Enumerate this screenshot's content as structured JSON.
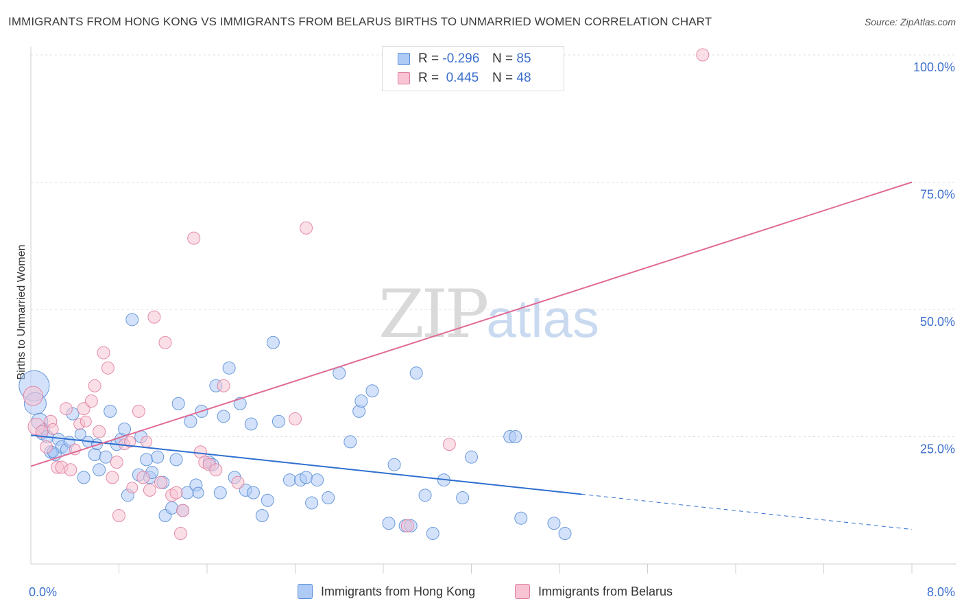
{
  "header": {
    "title": "IMMIGRANTS FROM HONG KONG VS IMMIGRANTS FROM BELARUS BIRTHS TO UNMARRIED WOMEN CORRELATION CHART",
    "source": "Source: ZipAtlas.com"
  },
  "watermark": {
    "zip": "ZIP",
    "atlas": "atlas"
  },
  "legend": {
    "rows": [
      {
        "r_label": "R =",
        "r_value": "-0.296",
        "n_label": "N =",
        "n_value": "85",
        "color": "#aecbf5",
        "border": "#5b8fd6"
      },
      {
        "r_label": "R =",
        "r_value": "0.445",
        "n_label": "N =",
        "n_value": "48",
        "color": "#f8c4d4",
        "border": "#e07ea0"
      }
    ]
  },
  "bottom_legend": {
    "hong_kong": "Immigrants from Hong Kong",
    "belarus": "Immigrants from Belarus"
  },
  "chart_data": {
    "type": "scatter",
    "title": "IMMIGRANTS FROM HONG KONG VS IMMIGRANTS FROM BELARUS BIRTHS TO UNMARRIED WOMEN CORRELATION CHART",
    "xlabel": "",
    "ylabel": "Births to Unmarried Women",
    "xlim": [
      0,
      8
    ],
    "ylim": [
      0,
      100
    ],
    "x_tick_labels": [
      "0.0%",
      "8.0%"
    ],
    "y_tick_labels": [
      "25.0%",
      "50.0%",
      "75.0%",
      "100.0%"
    ],
    "y_ticks": [
      25,
      50,
      75,
      100
    ],
    "grid": true,
    "legend_position": "top-center",
    "series": [
      {
        "name": "Immigrants from Hong Kong",
        "color": "#5b8fd6",
        "fill": "#aecbf5",
        "r": -0.296,
        "n": 85,
        "trend": {
          "x0": 0,
          "y0": 25.3,
          "x1": 5,
          "y1": 13.7,
          "dash_x1": 8,
          "dash_y1": 6.8
        },
        "points": [
          [
            0.03,
            35.0,
            22
          ],
          [
            0.04,
            31.5,
            16
          ],
          [
            0.08,
            28.0,
            12
          ],
          [
            0.1,
            25.5,
            8
          ],
          [
            0.12,
            26.5,
            8
          ],
          [
            0.15,
            25.0,
            9
          ],
          [
            0.18,
            22.0,
            9
          ],
          [
            0.22,
            21.5,
            9
          ],
          [
            0.25,
            24.5,
            9
          ],
          [
            0.28,
            23.0,
            9
          ],
          [
            0.32,
            22.5,
            8
          ],
          [
            0.35,
            24.0,
            8
          ],
          [
            0.38,
            29.5,
            9
          ],
          [
            0.45,
            25.5,
            8
          ],
          [
            0.48,
            17.0,
            9
          ],
          [
            0.52,
            24.0,
            8
          ],
          [
            0.58,
            21.5,
            9
          ],
          [
            0.62,
            18.5,
            9
          ],
          [
            0.68,
            21.0,
            9
          ],
          [
            0.72,
            30.0,
            9
          ],
          [
            0.78,
            23.5,
            9
          ],
          [
            0.82,
            24.5,
            9
          ],
          [
            0.85,
            26.5,
            9
          ],
          [
            0.88,
            13.5,
            9
          ],
          [
            0.92,
            48.0,
            9
          ],
          [
            0.98,
            17.5,
            9
          ],
          [
            1.0,
            25.0,
            9
          ],
          [
            1.05,
            20.5,
            9
          ],
          [
            1.08,
            17.0,
            9
          ],
          [
            1.1,
            18.0,
            9
          ],
          [
            1.15,
            21.0,
            9
          ],
          [
            1.2,
            16.0,
            9
          ],
          [
            1.22,
            9.5,
            9
          ],
          [
            1.28,
            11.0,
            9
          ],
          [
            1.32,
            20.5,
            9
          ],
          [
            1.34,
            31.5,
            9
          ],
          [
            1.38,
            10.5,
            9
          ],
          [
            1.42,
            14.0,
            9
          ],
          [
            1.45,
            28.0,
            9
          ],
          [
            1.5,
            15.5,
            9
          ],
          [
            1.55,
            30.0,
            9
          ],
          [
            1.62,
            20.0,
            9
          ],
          [
            1.65,
            19.5,
            9
          ],
          [
            1.68,
            35.0,
            9
          ],
          [
            1.72,
            14.0,
            9
          ],
          [
            1.75,
            29.0,
            9
          ],
          [
            1.8,
            38.5,
            9
          ],
          [
            1.85,
            17.0,
            9
          ],
          [
            1.9,
            31.5,
            9
          ],
          [
            1.95,
            14.5,
            9
          ],
          [
            2.0,
            27.5,
            9
          ],
          [
            2.02,
            14.0,
            9
          ],
          [
            2.1,
            9.5,
            9
          ],
          [
            2.15,
            12.5,
            9
          ],
          [
            2.2,
            43.5,
            9
          ],
          [
            2.25,
            28.0,
            9
          ],
          [
            2.35,
            16.5,
            9
          ],
          [
            2.45,
            16.5,
            9
          ],
          [
            2.5,
            17.0,
            9
          ],
          [
            2.55,
            12.0,
            9
          ],
          [
            2.6,
            16.5,
            9
          ],
          [
            2.7,
            13.0,
            9
          ],
          [
            2.8,
            37.5,
            9
          ],
          [
            2.9,
            24.0,
            9
          ],
          [
            2.98,
            30.0,
            9
          ],
          [
            3.0,
            32.0,
            9
          ],
          [
            3.1,
            34.0,
            9
          ],
          [
            3.25,
            8.0,
            9
          ],
          [
            3.3,
            19.5,
            9
          ],
          [
            3.4,
            7.5,
            9
          ],
          [
            3.45,
            7.5,
            9
          ],
          [
            3.5,
            37.5,
            9
          ],
          [
            3.58,
            13.5,
            9
          ],
          [
            3.65,
            6.0,
            9
          ],
          [
            3.75,
            16.5,
            9
          ],
          [
            3.92,
            13.0,
            9
          ],
          [
            4.0,
            21.0,
            9
          ],
          [
            4.35,
            25.0,
            9
          ],
          [
            4.4,
            25.0,
            9
          ],
          [
            4.45,
            9.0,
            9
          ],
          [
            4.75,
            8.0,
            9
          ],
          [
            4.85,
            6.0,
            9
          ],
          [
            0.2,
            22.0,
            8
          ],
          [
            0.6,
            23.5,
            8
          ],
          [
            1.52,
            14.0,
            8
          ]
        ]
      },
      {
        "name": "Immigrants from Belarus",
        "color": "#e07ea0",
        "fill": "#f8c4d4",
        "r": 0.445,
        "n": 48,
        "trend": {
          "x0": 0,
          "y0": 19.2,
          "x1": 8,
          "y1": 75.0
        },
        "points": [
          [
            0.02,
            33.0,
            14
          ],
          [
            0.05,
            27.0,
            12
          ],
          [
            0.1,
            26.0,
            9
          ],
          [
            0.14,
            23.0,
            9
          ],
          [
            0.18,
            28.0,
            9
          ],
          [
            0.2,
            26.5,
            8
          ],
          [
            0.24,
            19.0,
            9
          ],
          [
            0.28,
            19.0,
            9
          ],
          [
            0.32,
            30.5,
            9
          ],
          [
            0.36,
            18.5,
            9
          ],
          [
            0.4,
            22.5,
            8
          ],
          [
            0.44,
            27.5,
            8
          ],
          [
            0.48,
            30.5,
            9
          ],
          [
            0.5,
            28.0,
            8
          ],
          [
            0.55,
            32.0,
            9
          ],
          [
            0.58,
            35.0,
            9
          ],
          [
            0.62,
            26.0,
            9
          ],
          [
            0.66,
            41.5,
            9
          ],
          [
            0.7,
            38.5,
            9
          ],
          [
            0.74,
            17.0,
            9
          ],
          [
            0.78,
            20.0,
            9
          ],
          [
            0.8,
            9.5,
            9
          ],
          [
            0.85,
            23.5,
            8
          ],
          [
            0.9,
            24.0,
            8
          ],
          [
            0.92,
            15.0,
            8
          ],
          [
            0.98,
            30.0,
            9
          ],
          [
            1.02,
            17.0,
            9
          ],
          [
            1.05,
            24.0,
            8
          ],
          [
            1.08,
            14.5,
            9
          ],
          [
            1.12,
            48.5,
            9
          ],
          [
            1.18,
            16.0,
            9
          ],
          [
            1.22,
            43.5,
            9
          ],
          [
            1.28,
            13.5,
            9
          ],
          [
            1.32,
            14.0,
            9
          ],
          [
            1.36,
            6.0,
            9
          ],
          [
            1.38,
            10.5,
            9
          ],
          [
            1.48,
            64.0,
            9
          ],
          [
            1.54,
            22.0,
            9
          ],
          [
            1.58,
            20.0,
            9
          ],
          [
            1.62,
            19.5,
            9
          ],
          [
            1.68,
            18.5,
            9
          ],
          [
            1.75,
            35.0,
            9
          ],
          [
            1.88,
            16.0,
            9
          ],
          [
            2.4,
            28.5,
            9
          ],
          [
            2.5,
            66.0,
            9
          ],
          [
            3.42,
            7.5,
            9
          ],
          [
            3.8,
            23.5,
            9
          ],
          [
            6.1,
            100.0,
            9
          ]
        ]
      }
    ]
  }
}
